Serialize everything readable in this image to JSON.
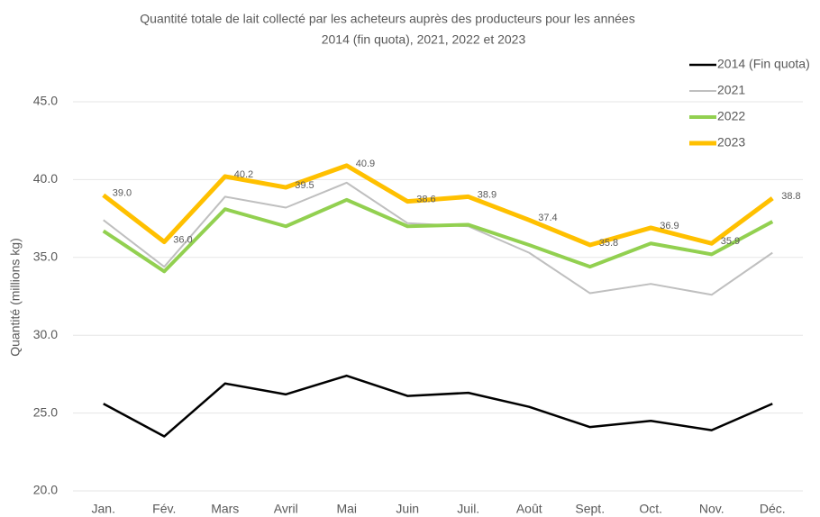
{
  "chart_data": {
    "type": "line",
    "title": [
      "Quantité totale de lait collecté par les acheteurs auprès des producteurs pour les années",
      "2014 (fin quota), 2021, 2022 et 2023"
    ],
    "y_label": "Quantité (millions kg)",
    "categories": [
      "Jan.",
      "Fév.",
      "Mars",
      "Avril",
      "Mai",
      "Juin",
      "Juil.",
      "Août",
      "Sept.",
      "Oct.",
      "Nov.",
      "Déc."
    ],
    "series": [
      {
        "name": "2014 (Fin quota)",
        "color": "#000000",
        "values": [
          25.6,
          23.5,
          26.9,
          26.2,
          27.4,
          26.1,
          26.3,
          25.4,
          24.1,
          24.5,
          23.9,
          25.6
        ]
      },
      {
        "name": "2021",
        "color": "#bfbfbf",
        "values": [
          37.4,
          34.4,
          38.9,
          38.2,
          39.8,
          37.2,
          37.0,
          35.3,
          32.7,
          33.3,
          32.6,
          35.3
        ]
      },
      {
        "name": "2022",
        "color": "#92d050",
        "values": [
          36.7,
          34.1,
          38.1,
          37.0,
          38.7,
          37.0,
          37.1,
          35.8,
          34.4,
          35.9,
          35.2,
          37.3
        ]
      },
      {
        "name": "2023",
        "color": "#ffc000",
        "values": [
          39.0,
          36.0,
          40.2,
          39.5,
          40.9,
          38.6,
          38.9,
          37.4,
          35.8,
          36.9,
          35.9,
          38.8
        ],
        "value_labels": [
          "39.0",
          "36.0",
          "40.2",
          "39.5",
          "40.9",
          "38.6",
          "38.9",
          "37.4",
          "35.8",
          "36.9",
          "35.9",
          "38.8"
        ]
      }
    ],
    "ylim": [
      20,
      45
    ],
    "yticks": [
      {
        "value": 20,
        "label": "20.0"
      },
      {
        "value": 25,
        "label": "25.0"
      },
      {
        "value": 30,
        "label": "30.0"
      },
      {
        "value": 35,
        "label": "35.0"
      },
      {
        "value": 40,
        "label": "40.0"
      },
      {
        "value": 45,
        "label": "45.0"
      }
    ],
    "grid": true,
    "legend": "top-right"
  }
}
